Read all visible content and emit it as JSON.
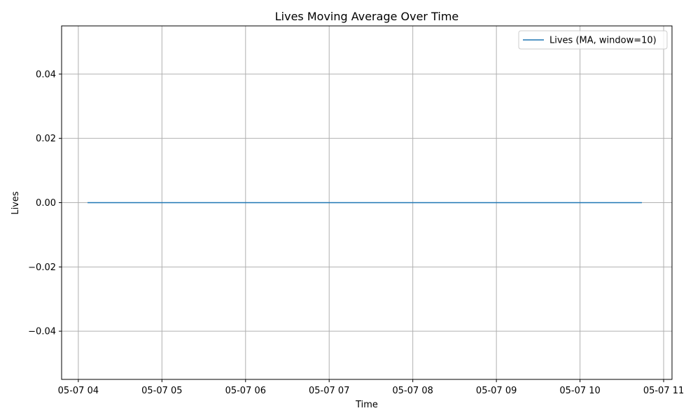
{
  "chart_data": {
    "type": "line",
    "title": "Lives Moving Average Over Time",
    "xlabel": "Time",
    "ylabel": "Lives",
    "x_ticks": [
      "05-07 04",
      "05-07 05",
      "05-07 06",
      "05-07 07",
      "05-07 08",
      "05-07 09",
      "05-07 10",
      "05-07 11"
    ],
    "x_tick_hours": [
      4,
      5,
      6,
      7,
      8,
      9,
      10,
      11
    ],
    "xlim_hours": [
      3.8,
      11.1
    ],
    "y_ticks": [
      -0.04,
      -0.02,
      0.0,
      0.02,
      0.04
    ],
    "y_tick_labels": [
      "−0.04",
      "−0.02",
      "0.00",
      "0.02",
      "0.04"
    ],
    "ylim": [
      -0.055,
      0.055
    ],
    "grid": true,
    "legend_position": "top-right",
    "series": [
      {
        "name": "Lives (MA, window=10)",
        "color": "#1f77b4",
        "x_hours": [
          4.11,
          10.74
        ],
        "values": [
          0.0,
          0.0
        ]
      }
    ]
  }
}
